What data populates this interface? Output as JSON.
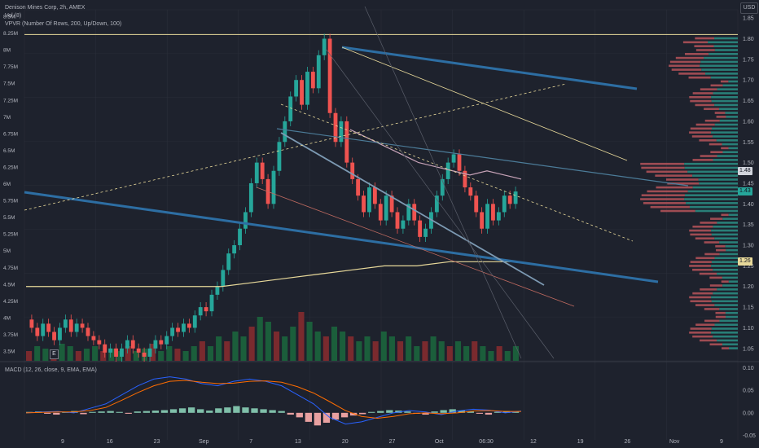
{
  "header": {
    "title": "Denison Mines Corp, 2h, AMEX",
    "vol": "Vol (8)",
    "vpvr": "VPVR (Number Of Rows, 200, Up/Down, 100)",
    "macd": "MACD (12, 26, close, 9, EMA, EMA)",
    "currency": "USD",
    "earnings_badge": "E"
  },
  "price_tags": [
    {
      "label": "1.48",
      "value": 1.48,
      "color": "#d1d4dc"
    },
    {
      "label": "1.43",
      "value": 1.43,
      "color": "#26a69a"
    },
    {
      "label": "1.26",
      "value": 1.26,
      "color": "#e8d99a"
    }
  ],
  "chart_data": [
    {
      "type": "candlestick",
      "title": "Denison Mines Corp, 2h, AMEX",
      "x_ticks": [
        "9",
        "16",
        "23",
        "Sep",
        "7",
        "13",
        "20",
        "27",
        "Oct",
        "06:30",
        "12",
        "19",
        "26",
        "Nov",
        "9"
      ],
      "y_right_ticks": [
        "1.85",
        "1.80",
        "1.75",
        "1.70",
        "1.65",
        "1.60",
        "1.55",
        "1.50",
        "1.45",
        "1.40",
        "1.35",
        "1.30",
        "1.25",
        "1.20",
        "1.15",
        "1.10",
        "1.05"
      ],
      "y_left_ticks": [
        "8.5M",
        "8.25M",
        "8M",
        "7.75M",
        "7.5M",
        "7.25M",
        "7M",
        "6.75M",
        "6.5M",
        "6.25M",
        "6M",
        "5.75M",
        "5.5M",
        "5.25M",
        "5M",
        "4.75M",
        "4.5M",
        "4.25M",
        "4M",
        "3.75M",
        "3.5M"
      ],
      "ylim": [
        1.02,
        1.87
      ],
      "price_path": [
        1.12,
        1.1,
        1.08,
        1.11,
        1.09,
        1.07,
        1.1,
        1.12,
        1.09,
        1.11,
        1.1,
        1.08,
        1.07,
        1.06,
        1.04,
        1.05,
        1.03,
        1.05,
        1.07,
        1.05,
        1.04,
        1.03,
        1.05,
        1.07,
        1.06,
        1.08,
        1.1,
        1.09,
        1.11,
        1.1,
        1.13,
        1.15,
        1.14,
        1.18,
        1.2,
        1.24,
        1.28,
        1.3,
        1.34,
        1.38,
        1.45,
        1.5,
        1.46,
        1.4,
        1.48,
        1.55,
        1.6,
        1.66,
        1.7,
        1.64,
        1.72,
        1.68,
        1.76,
        1.8,
        1.62,
        1.55,
        1.6,
        1.5,
        1.46,
        1.42,
        1.38,
        1.44,
        1.4,
        1.36,
        1.42,
        1.38,
        1.34,
        1.36,
        1.4,
        1.36,
        1.32,
        1.34,
        1.38,
        1.42,
        1.46,
        1.5,
        1.52,
        1.48,
        1.44,
        1.42,
        1.38,
        1.34,
        1.4,
        1.36,
        1.38,
        1.42,
        1.4,
        1.43
      ],
      "horizontal_level": 1.81,
      "ma_fast": [
        1.58,
        1.56,
        1.54,
        1.52,
        1.5,
        1.49,
        1.48,
        1.47,
        1.48,
        1.47,
        1.46
      ],
      "ma_slow": [
        1.2,
        1.2,
        1.2,
        1.2,
        1.2,
        1.2,
        1.2,
        1.21,
        1.22,
        1.23,
        1.24,
        1.25,
        1.25,
        1.26,
        1.26,
        1.26
      ]
    },
    {
      "type": "bar",
      "title": "Vol (8)",
      "values": [
        0.2,
        0.3,
        0.25,
        0.2,
        0.35,
        0.3,
        0.2,
        0.25,
        0.3,
        0.2,
        0.25,
        0.2,
        0.3,
        0.2,
        0.25,
        0.35,
        0.2,
        0.3,
        0.25,
        0.2,
        0.3,
        0.4,
        0.3,
        0.5,
        0.4,
        0.6,
        0.5,
        0.7,
        0.9,
        0.8,
        0.6,
        0.5,
        0.7,
        1.0,
        0.8,
        0.6,
        0.5,
        0.7,
        0.6,
        0.5,
        0.4,
        0.5,
        0.4,
        0.6,
        0.5,
        0.4,
        0.5,
        0.3,
        0.4,
        0.5,
        0.4,
        0.3,
        0.4,
        0.3,
        0.4,
        0.3,
        0.2,
        0.3,
        0.2,
        0.3
      ]
    },
    {
      "type": "histogram",
      "title": "MACD (12, 26, close, 9, EMA, EMA)",
      "y_ticks": [
        "0.10",
        "0.05",
        "0.00",
        "-0.05"
      ],
      "ylim": [
        -0.06,
        0.11
      ],
      "histogram": [
        0.002,
        0.003,
        -0.002,
        -0.004,
        0.002,
        0.004,
        -0.003,
        0.002,
        0.003,
        0.004,
        0.002,
        -0.002,
        0.003,
        0.004,
        0.005,
        0.006,
        0.008,
        0.01,
        0.012,
        0.008,
        0.005,
        0.01,
        0.012,
        0.015,
        0.012,
        0.01,
        0.008,
        0.006,
        0.004,
        -0.004,
        -0.01,
        -0.02,
        -0.028,
        -0.022,
        -0.015,
        -0.01,
        -0.006,
        -0.003,
        0.002,
        0.004,
        0.006,
        0.005,
        0.003,
        -0.002,
        -0.004,
        0.003,
        0.006,
        0.008,
        0.005,
        0.003,
        -0.002,
        -0.004,
        0.002,
        0.004,
        0.003
      ],
      "macd_line": [
        0.0,
        0.002,
        0.003,
        0.0,
        0.01,
        0.02,
        0.04,
        0.06,
        0.075,
        0.08,
        0.075,
        0.065,
        0.06,
        0.07,
        0.075,
        0.07,
        0.06,
        0.04,
        0.02,
        -0.01,
        -0.025,
        -0.02,
        -0.01,
        0.0,
        0.005,
        0.002,
        -0.004,
        0.004,
        0.008,
        0.006,
        0.0,
        0.004
      ],
      "signal_line": [
        0.0,
        0.001,
        0.002,
        0.002,
        0.005,
        0.012,
        0.028,
        0.045,
        0.06,
        0.07,
        0.072,
        0.068,
        0.065,
        0.066,
        0.07,
        0.071,
        0.068,
        0.058,
        0.044,
        0.025,
        0.005,
        -0.008,
        -0.012,
        -0.008,
        -0.002,
        0.0,
        -0.002,
        0.0,
        0.004,
        0.005,
        0.003,
        0.003
      ]
    }
  ],
  "colors": {
    "background": "#1e222d",
    "up": "#26a69a",
    "down": "#ef5350",
    "grid": "#2a2e39",
    "axis_text": "#b2b5be",
    "yellow_line": "#e8d99a",
    "blue_trend": "#2d6ea3",
    "macd": "#2962ff",
    "signal": "#ff6d00"
  }
}
